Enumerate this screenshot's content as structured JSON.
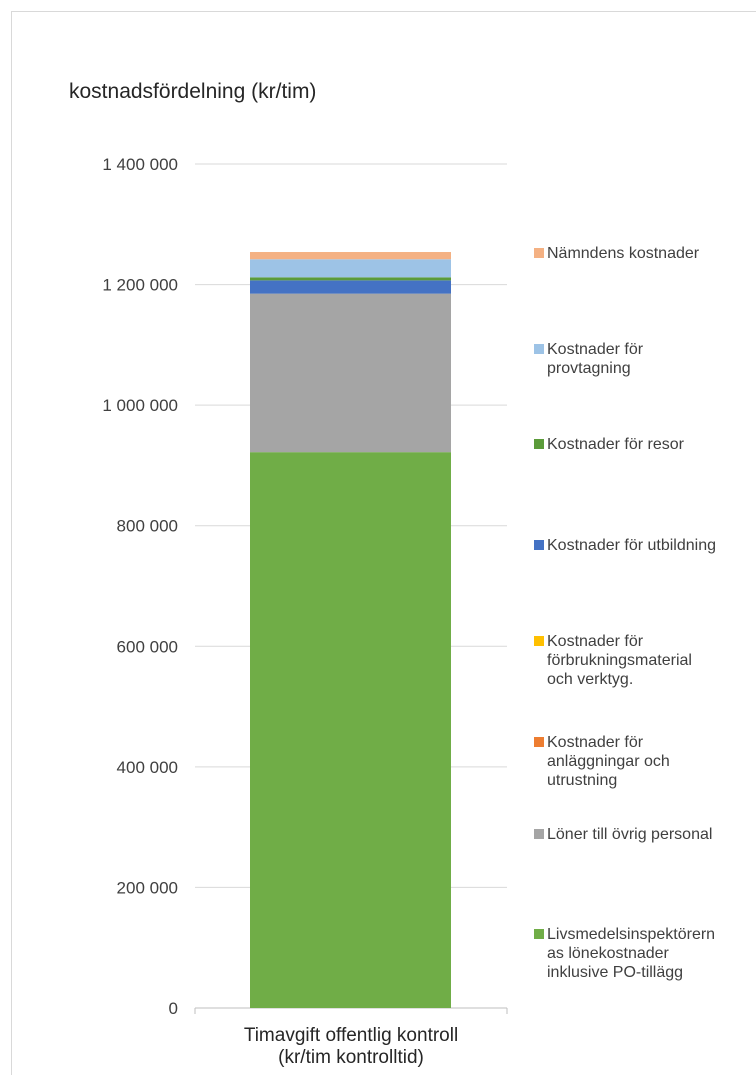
{
  "chart_data": {
    "type": "bar",
    "stacked": true,
    "title": "kostnadsfördelning (kr/tim)",
    "xlabel": "",
    "ylabel": "",
    "categories": [
      "Timavgift offentlig kontroll\n(kr/tim kontrolltid)"
    ],
    "ylim": [
      0,
      1400000
    ],
    "yticks": [
      0,
      200000,
      400000,
      600000,
      800000,
      1000000,
      1200000,
      1400000
    ],
    "ytick_labels": [
      "0",
      "200 000",
      "400 000",
      "600 000",
      "800 000",
      "1 000 000",
      "1 200 000",
      "1 400 000"
    ],
    "grid": true,
    "legend_position": "right",
    "series": [
      {
        "name": "Livsmedelsinspektörernas lönekostnader inklusive PO-tillägg",
        "legend_text": "Livsmedelsinspektörern\nas lönekostnader\ninklusive PO-tillägg",
        "values": [
          922000
        ],
        "color": "#70ad47"
      },
      {
        "name": "Löner till övrig personal",
        "legend_text": "Löner till övrig personal",
        "values": [
          263000
        ],
        "color": "#a5a5a5"
      },
      {
        "name": "Kostnader för anläggningar och utrustning",
        "legend_text": "Kostnader för\nanläggningar och\nutrustning",
        "values": [
          0
        ],
        "color": "#ed7d31"
      },
      {
        "name": "Kostnader för förbrukningsmaterial och verktyg.",
        "legend_text": "Kostnader för\nförbrukningsmaterial\noch verktyg.",
        "values": [
          0
        ],
        "color": "#ffc000"
      },
      {
        "name": "Kostnader för utbildning",
        "legend_text": "Kostnader för utbildning",
        "values": [
          22000
        ],
        "color": "#4472c4"
      },
      {
        "name": "Kostnader för resor",
        "legend_text": "Kostnader för resor",
        "values": [
          5000
        ],
        "color": "#5b9b3a"
      },
      {
        "name": "Kostnader för provtagning",
        "legend_text": "Kostnader för\nprovtagning",
        "values": [
          30000
        ],
        "color": "#9dc3e6"
      },
      {
        "name": "Nämndens kostnader",
        "legend_text": "Nämndens kostnader",
        "values": [
          12000
        ],
        "color": "#f4b183"
      }
    ]
  }
}
